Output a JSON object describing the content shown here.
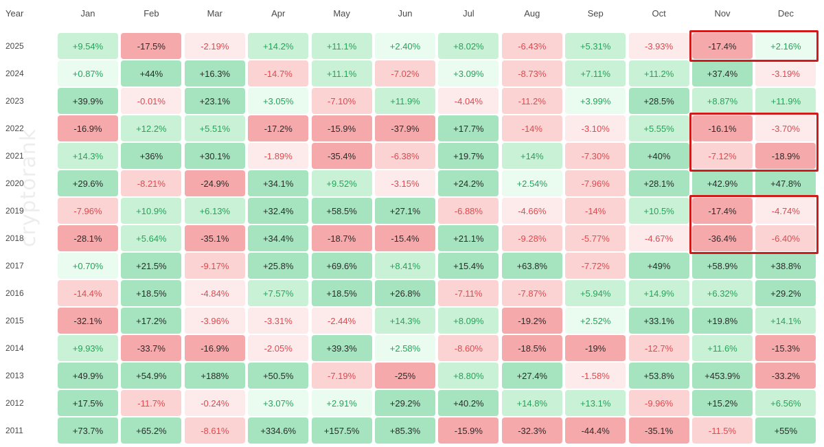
{
  "chart_data": {
    "type": "heatmap",
    "title": "",
    "corner_label": "Year",
    "columns": [
      "Jan",
      "Feb",
      "Mar",
      "Apr",
      "May",
      "Jun",
      "Jul",
      "Aug",
      "Sep",
      "Oct",
      "Nov",
      "Dec"
    ],
    "rows": [
      {
        "year": "2025",
        "values": [
          "+9.54%",
          "-17.5%",
          "-2.19%",
          "+14.2%",
          "+11.1%",
          "+2.40%",
          "+8.02%",
          "-6.43%",
          "+5.31%",
          "-3.93%",
          "-17.4%",
          "+2.16%"
        ]
      },
      {
        "year": "2024",
        "values": [
          "+0.87%",
          "+44%",
          "+16.3%",
          "-14.7%",
          "+11.1%",
          "-7.02%",
          "+3.09%",
          "-8.73%",
          "+7.11%",
          "+11.2%",
          "+37.4%",
          "-3.19%"
        ]
      },
      {
        "year": "2023",
        "values": [
          "+39.9%",
          "-0.01%",
          "+23.1%",
          "+3.05%",
          "-7.10%",
          "+11.9%",
          "-4.04%",
          "-11.2%",
          "+3.99%",
          "+28.5%",
          "+8.87%",
          "+11.9%"
        ]
      },
      {
        "year": "2022",
        "values": [
          "-16.9%",
          "+12.2%",
          "+5.51%",
          "-17.2%",
          "-15.9%",
          "-37.9%",
          "+17.7%",
          "-14%",
          "-3.10%",
          "+5.55%",
          "-16.1%",
          "-3.70%"
        ]
      },
      {
        "year": "2021",
        "values": [
          "+14.3%",
          "+36%",
          "+30.1%",
          "-1.89%",
          "-35.4%",
          "-6.38%",
          "+19.7%",
          "+14%",
          "-7.30%",
          "+40%",
          "-7.12%",
          "-18.9%"
        ]
      },
      {
        "year": "2020",
        "values": [
          "+29.6%",
          "-8.21%",
          "-24.9%",
          "+34.1%",
          "+9.52%",
          "-3.15%",
          "+24.2%",
          "+2.54%",
          "-7.96%",
          "+28.1%",
          "+42.9%",
          "+47.8%"
        ]
      },
      {
        "year": "2019",
        "values": [
          "-7.96%",
          "+10.9%",
          "+6.13%",
          "+32.4%",
          "+58.5%",
          "+27.1%",
          "-6.88%",
          "-4.66%",
          "-14%",
          "+10.5%",
          "-17.4%",
          "-4.74%"
        ]
      },
      {
        "year": "2018",
        "values": [
          "-28.1%",
          "+5.64%",
          "-35.1%",
          "+34.4%",
          "-18.7%",
          "-15.4%",
          "+21.1%",
          "-9.28%",
          "-5.77%",
          "-4.67%",
          "-36.4%",
          "-6.40%"
        ]
      },
      {
        "year": "2017",
        "values": [
          "+0.70%",
          "+21.5%",
          "-9.17%",
          "+25.8%",
          "+69.6%",
          "+8.41%",
          "+15.4%",
          "+63.8%",
          "-7.72%",
          "+49%",
          "+58.9%",
          "+38.8%"
        ]
      },
      {
        "year": "2016",
        "values": [
          "-14.4%",
          "+18.5%",
          "-4.84%",
          "+7.57%",
          "+18.5%",
          "+26.8%",
          "-7.11%",
          "-7.87%",
          "+5.94%",
          "+14.9%",
          "+6.32%",
          "+29.2%"
        ]
      },
      {
        "year": "2015",
        "values": [
          "-32.1%",
          "+17.2%",
          "-3.96%",
          "-3.31%",
          "-2.44%",
          "+14.3%",
          "+8.09%",
          "-19.2%",
          "+2.52%",
          "+33.1%",
          "+19.8%",
          "+14.1%"
        ]
      },
      {
        "year": "2014",
        "values": [
          "+9.93%",
          "-33.7%",
          "-16.9%",
          "-2.05%",
          "+39.3%",
          "+2.58%",
          "-8.60%",
          "-18.5%",
          "-19%",
          "-12.7%",
          "+11.6%",
          "-15.3%"
        ]
      },
      {
        "year": "2013",
        "values": [
          "+49.9%",
          "+54.9%",
          "+188%",
          "+50.5%",
          "-7.19%",
          "-25%",
          "+8.80%",
          "+27.4%",
          "-1.58%",
          "+53.8%",
          "+453.9%",
          "-33.2%"
        ]
      },
      {
        "year": "2012",
        "values": [
          "+17.5%",
          "-11.7%",
          "-0.24%",
          "+3.07%",
          "+2.91%",
          "+29.2%",
          "+40.2%",
          "+14.8%",
          "+13.1%",
          "-9.96%",
          "+15.2%",
          "+6.56%"
        ]
      },
      {
        "year": "2011",
        "values": [
          "+73.7%",
          "+65.2%",
          "-8.61%",
          "+334.6%",
          "+157.5%",
          "+85.3%",
          "-15.9%",
          "-32.3%",
          "-44.4%",
          "-35.1%",
          "-11.5%",
          "+55%"
        ]
      }
    ],
    "highlights": [
      {
        "years": [
          "2025"
        ],
        "months": [
          "Nov",
          "Dec"
        ]
      },
      {
        "years": [
          "2022",
          "2021"
        ],
        "months": [
          "Nov",
          "Dec"
        ]
      },
      {
        "years": [
          "2019",
          "2018"
        ],
        "months": [
          "Nov",
          "Dec"
        ]
      }
    ],
    "watermark": "cryptorank"
  },
  "colors": {
    "pos_light": "#eafbef",
    "pos_mid": "#c9f1d6",
    "pos_strong": "#a6e4bf",
    "neg_light": "#fdeaea",
    "neg_mid": "#fbd3d3",
    "neg_strong": "#f6a9ab",
    "pos_text": "#22a55a",
    "neg_text": "#e0494f",
    "strong_text": "#2b2b2b",
    "highlight_border": "#d11a1a"
  }
}
